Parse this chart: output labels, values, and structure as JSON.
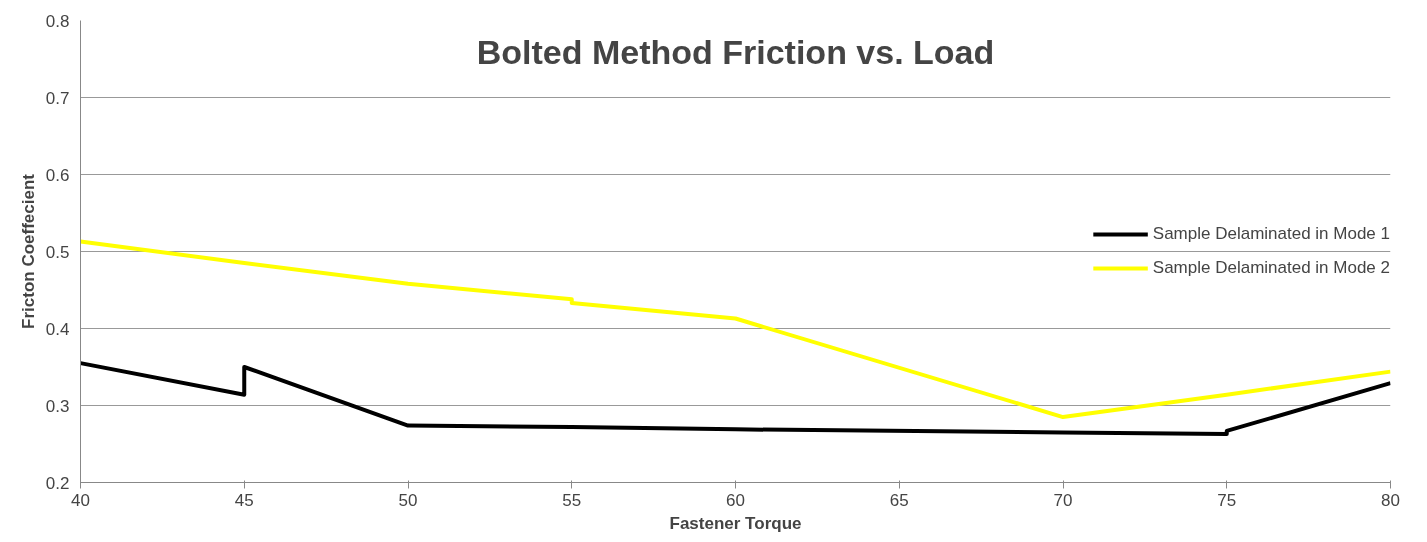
{
  "chart_data": {
    "type": "line",
    "title": "Bolted Method Friction vs. Load",
    "xlabel": "Fastener Torque",
    "ylabel": "Fricton Coeffecient",
    "xlim": [
      40,
      80
    ],
    "xticks": [
      40,
      45,
      50,
      55,
      60,
      65,
      70,
      75,
      80
    ],
    "ylim": [
      0.2,
      0.8
    ],
    "yticks": [
      0.2,
      0.3,
      0.4,
      0.5,
      0.6,
      0.7,
      0.8
    ],
    "grid": "y",
    "legend": "right",
    "marker": "none",
    "line_style": "solid",
    "series": [
      {
        "name": "Sample Delaminated in Mode 1",
        "color": "#000000",
        "x": [
          40,
          45,
          45,
          50,
          55,
          60,
          70,
          75,
          75,
          80
        ],
        "values": [
          0.355,
          0.314,
          0.35,
          0.274,
          0.272,
          0.269,
          0.265,
          0.263,
          0.267,
          0.329
        ]
      },
      {
        "name": "Sample Delaminated in Mode 2",
        "color": "#ffff00",
        "x": [
          40,
          45,
          50,
          55,
          55,
          60,
          70,
          75,
          80
        ],
        "values": [
          0.513,
          0.485,
          0.458,
          0.438,
          0.433,
          0.413,
          0.285,
          0.314,
          0.344
        ]
      }
    ]
  }
}
